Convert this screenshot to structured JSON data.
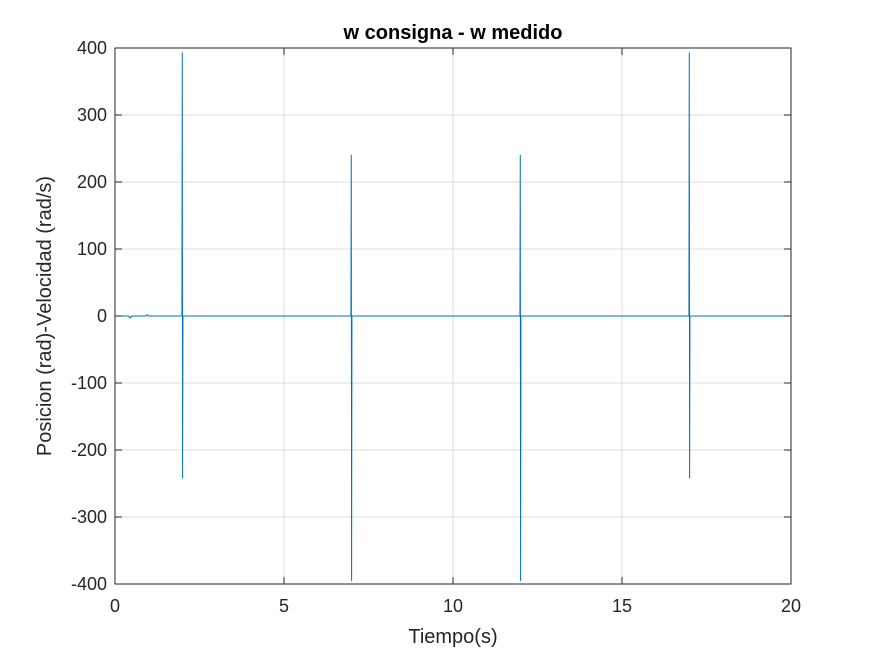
{
  "chart_data": {
    "type": "line",
    "title": "w consigna - w medido",
    "xlabel": "Tiempo(s)",
    "ylabel": "Posicion (rad)-Velocidad (rad/s)",
    "xlim": [
      0,
      20
    ],
    "ylim": [
      -400,
      400
    ],
    "xticks": [
      0,
      5,
      10,
      15,
      20
    ],
    "yticks": [
      -400,
      -300,
      -200,
      -100,
      0,
      100,
      200,
      300,
      400
    ],
    "xtick_labels": [
      "0",
      "5",
      "10",
      "15",
      "20"
    ],
    "ytick_labels": [
      "-400",
      "-300",
      "-200",
      "-100",
      "0",
      "100",
      "200",
      "300",
      "400"
    ],
    "grid": true,
    "color": "#0072BD",
    "series": [
      {
        "x": [
          0,
          0.4,
          0.45,
          0.5,
          0.55,
          0.9,
          0.95,
          1.0,
          1.98,
          1.99,
          2.0,
          2.01,
          2.02,
          6.98,
          6.99,
          7.0,
          7.01,
          7.02,
          11.98,
          11.99,
          12.0,
          12.01,
          12.02,
          16.98,
          16.99,
          17.0,
          17.01,
          17.02,
          20
        ],
        "y": [
          0,
          0,
          -3,
          0,
          0,
          0,
          2,
          0,
          0,
          393,
          -242,
          0,
          0,
          0,
          240,
          -395,
          0,
          0,
          0,
          240,
          -395,
          0,
          0,
          0,
          393,
          -242,
          0,
          0,
          0
        ]
      }
    ]
  }
}
